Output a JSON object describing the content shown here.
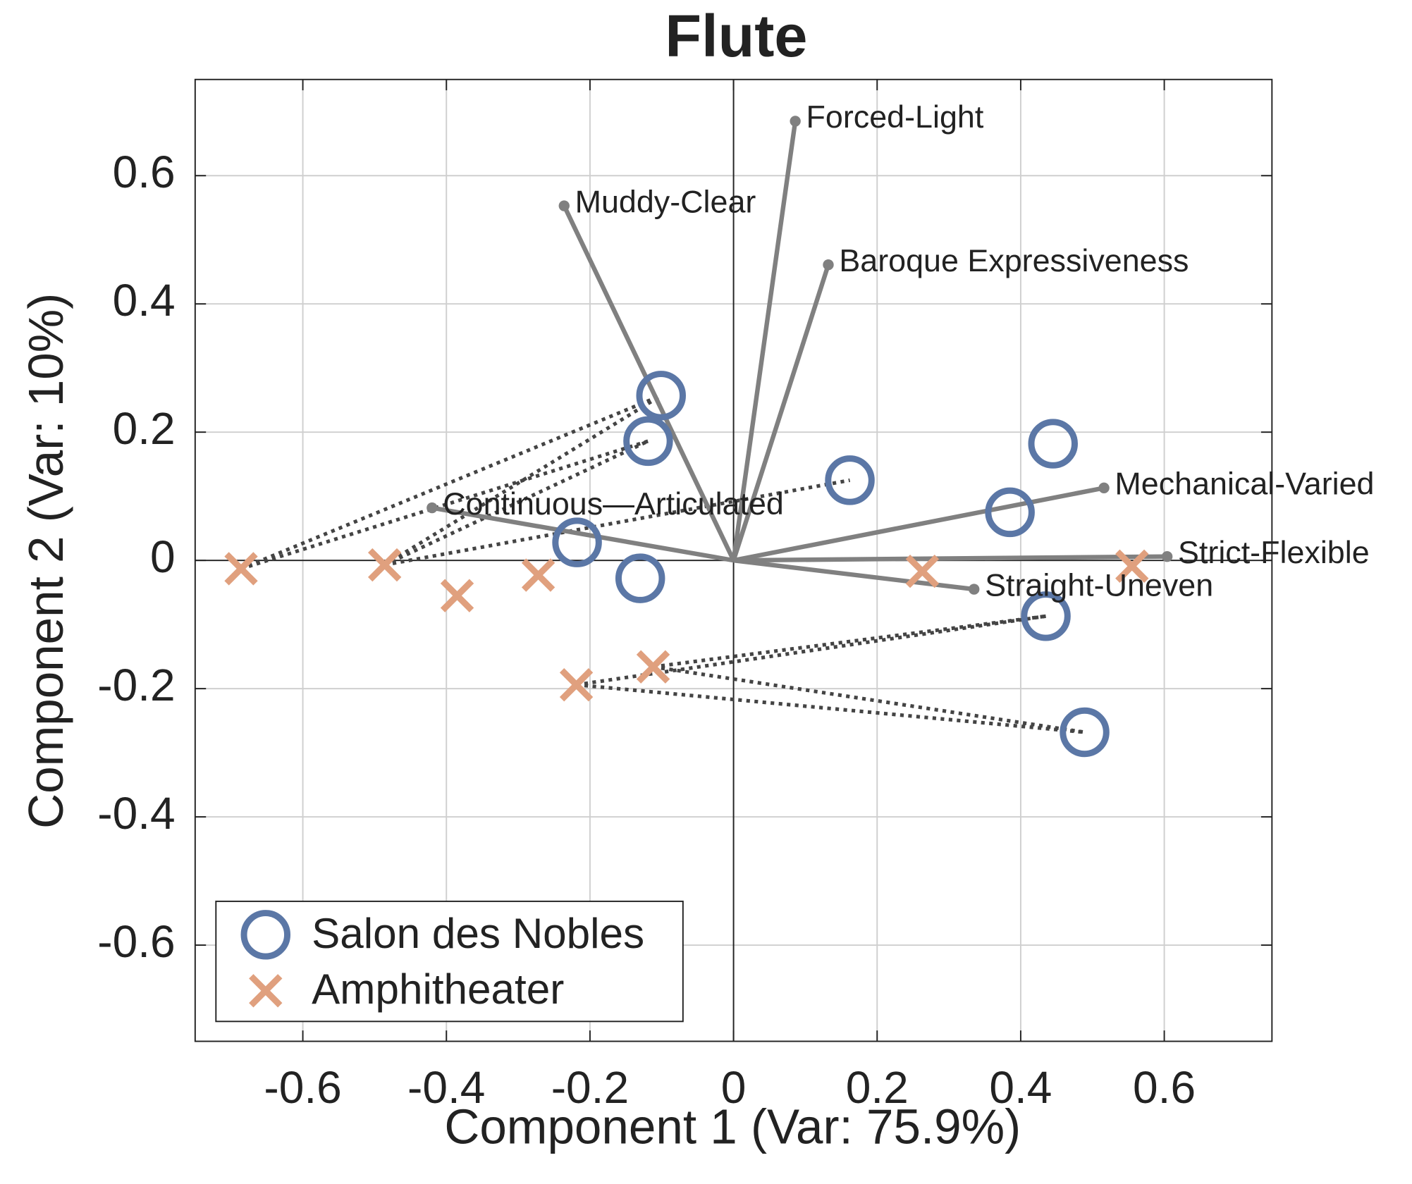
{
  "chart_data": {
    "type": "scatter",
    "title": "Flute",
    "xlabel": "Component 1 (Var: 75.9%)",
    "ylabel": "Component 2 (Var: 10%)",
    "xlim": [
      -0.75,
      0.75
    ],
    "ylim": [
      -0.75,
      0.75
    ],
    "xticks": [
      -0.6,
      -0.4,
      -0.2,
      0,
      0.2,
      0.4,
      0.6
    ],
    "yticks": [
      -0.6,
      -0.4,
      -0.2,
      0,
      0.2,
      0.4,
      0.6
    ],
    "grid": true,
    "legend": "lower left",
    "series": [
      {
        "name": "Salon des Nobles",
        "color": "#5b77a6",
        "marker": "o",
        "x": [
          -0.101,
          -0.119,
          0.162,
          0.445,
          0.385,
          -0.218,
          -0.13,
          0.435,
          0.489
        ],
        "values": [
          0.257,
          0.186,
          0.125,
          0.182,
          0.075,
          0.028,
          -0.028,
          -0.087,
          -0.268
        ]
      },
      {
        "name": "Amphitheater",
        "color": "#e0a07e",
        "marker": "x",
        "x": [
          -0.686,
          -0.486,
          -0.385,
          -0.272,
          -0.219,
          -0.112,
          0.263,
          0.555
        ],
        "values": [
          -0.013,
          -0.007,
          -0.055,
          -0.023,
          -0.194,
          -0.166,
          -0.017,
          -0.009
        ]
      }
    ],
    "loadings": {
      "color": "#808080",
      "labels": [
        "Forced-Light",
        "Muddy-Clear",
        "Baroque Expressiveness",
        "Mechanical-Varied",
        "Strict-Flexible",
        "Straight-Uneven",
        "Continuous—Articulated"
      ],
      "x": [
        0.086,
        -0.236,
        0.132,
        0.516,
        0.604,
        0.335,
        -0.42
      ],
      "values": [
        0.685,
        0.553,
        0.461,
        0.113,
        0.006,
        -0.045,
        0.082
      ]
    },
    "links": [
      [
        0,
        0
      ],
      [
        0,
        1
      ],
      [
        1,
        0
      ],
      [
        1,
        1
      ],
      [
        1,
        2
      ],
      [
        4,
        7
      ],
      [
        4,
        8
      ],
      [
        5,
        7
      ],
      [
        5,
        8
      ]
    ]
  }
}
